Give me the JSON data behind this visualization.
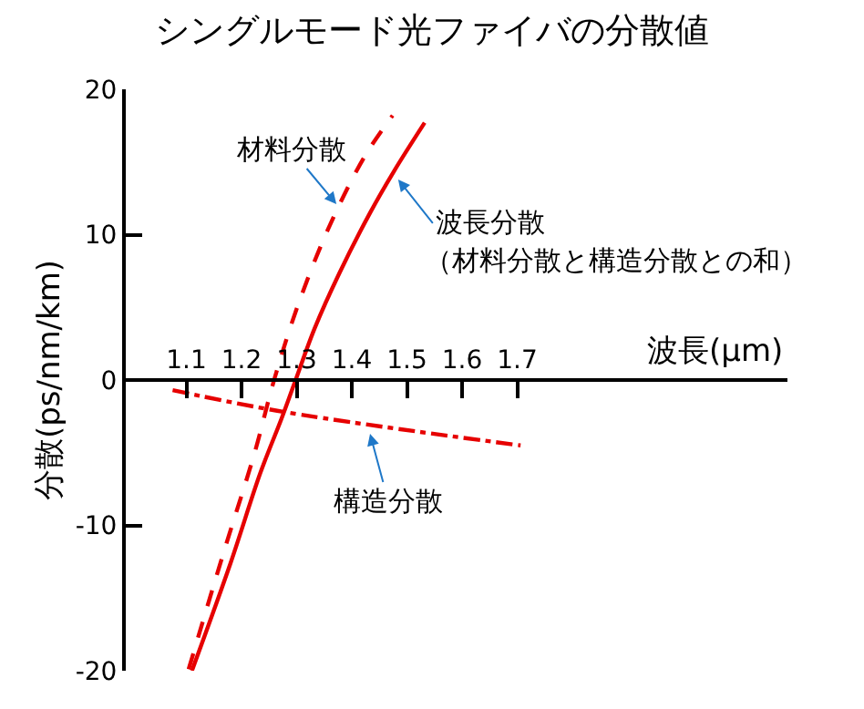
{
  "chart_data": {
    "type": "line",
    "title": "シングルモード光ファイバの分散値",
    "xlabel": "波長(μm)",
    "ylabel": "分散(ps/nm/km)",
    "xlim": [
      0.99,
      2.19
    ],
    "xticks": [
      1.1,
      1.2,
      1.3,
      1.4,
      1.5,
      1.6,
      1.7
    ],
    "ylim": [
      -20,
      20
    ],
    "yticks": [
      -20,
      -10,
      0,
      10,
      20
    ],
    "series": [
      {
        "color": "#e60000",
        "line_style": "solid",
        "x": [
          1.11,
          1.18,
          1.234,
          1.273,
          1.298,
          1.333,
          1.378,
          1.433,
          1.477,
          1.532
        ],
        "values": [
          -20,
          -12.6,
          -6.4,
          -2.6,
          0,
          3.6,
          7.4,
          11.5,
          14.4,
          17.7
        ]
      },
      {
        "color": "#e60000",
        "line_style": "dashed",
        "x": [
          1.104,
          1.168,
          1.223,
          1.259,
          1.3,
          1.356,
          1.422,
          1.474
        ],
        "values": [
          -19.9,
          -11.8,
          -5.1,
          0,
          4.9,
          10.3,
          15.3,
          18.2
        ]
      },
      {
        "color": "#e60000",
        "line_style": "dashdot",
        "x": [
          1.075,
          1.278,
          1.706
        ],
        "values": [
          -0.7,
          -2.2,
          -4.5
        ]
      }
    ],
    "annotations": [
      {
        "text": "材料分散",
        "x": 1.372,
        "y": 12.1
      },
      {
        "text": "波長分散",
        "x": 1.484,
        "y": 13.8
      },
      "（材料分散と構造分散との和）",
      {
        "text": "構造分散",
        "x": 1.433,
        "y": -3.7
      }
    ]
  }
}
